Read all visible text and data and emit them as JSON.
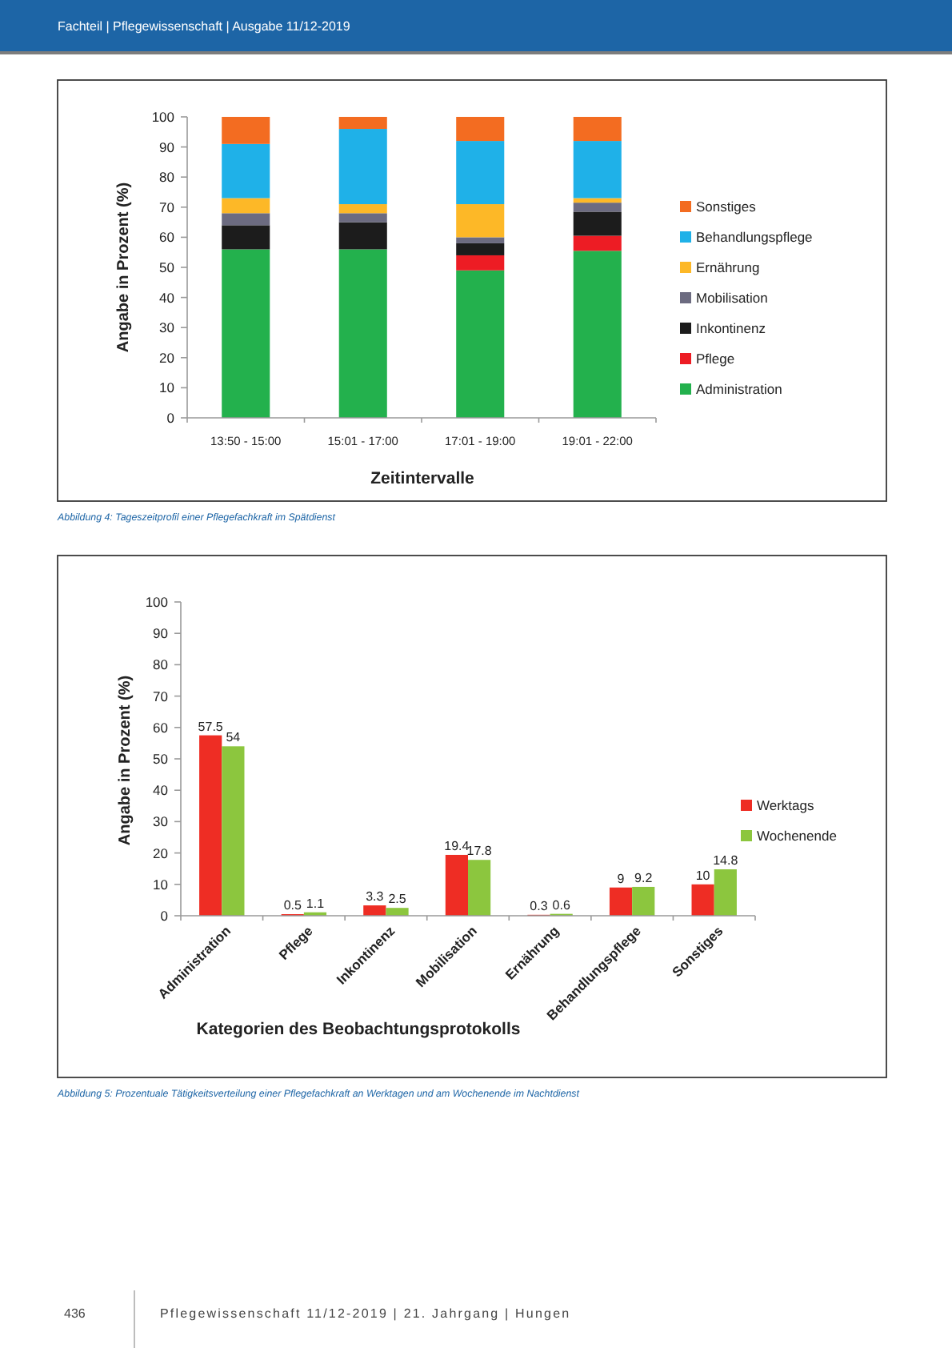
{
  "chart_data": [
    {
      "type": "bar",
      "stacked": true,
      "xlabel": "Zeitintervalle",
      "ylabel": "Angabe in Prozent (%)",
      "categories": [
        "13:50 - 15:00",
        "15:01 - 17:00",
        "17:01 - 19:00",
        "19:01 - 22:00"
      ],
      "series": [
        {
          "name": "Administration",
          "color": "#23b14d",
          "values": [
            56,
            56,
            49,
            55.5
          ]
        },
        {
          "name": "Pflege",
          "color": "#ed1c24",
          "values": [
            0,
            0,
            5,
            5
          ]
        },
        {
          "name": "Inkontinenz",
          "color": "#1c1c1c",
          "values": [
            8,
            9,
            4,
            8
          ]
        },
        {
          "name": "Mobilisation",
          "color": "#6c6b80",
          "values": [
            4,
            3,
            2,
            3
          ]
        },
        {
          "name": "Ernährung",
          "color": "#fdb827",
          "values": [
            5,
            3,
            11,
            1.5
          ]
        },
        {
          "name": "Behandlungspflege",
          "color": "#1fb1e8",
          "values": [
            18,
            25,
            21,
            19
          ]
        },
        {
          "name": "Sonstiges",
          "color": "#f36c21",
          "values": [
            9,
            4,
            8,
            8
          ]
        }
      ],
      "ylim": [
        0,
        100
      ],
      "yticks": [
        0,
        10,
        20,
        30,
        40,
        50,
        60,
        70,
        80,
        90,
        100
      ],
      "legend": "right",
      "annotations": [
        "Fachteil | Pflegewissenschaft | Ausgabe 11/12-2019",
        "Abbildung 4: Tageszeitprofil einer Pflegefachkraft im Spätdienst"
      ]
    },
    {
      "type": "bar",
      "xlabel": "Kategorien des Beobachtungsprotokolls",
      "ylabel": "Angabe in Prozent (%)",
      "categories": [
        "Administration",
        "Pflege",
        "Inkontinenz",
        "Mobilisation",
        "Ernährung",
        "Behandlungspflege",
        "Sonstiges"
      ],
      "series": [
        {
          "name": "Werktags",
          "color": "#ee2d24",
          "values": [
            57.5,
            0.5,
            3.3,
            19.4,
            0.3,
            9,
            10
          ]
        },
        {
          "name": "Wochenende",
          "color": "#8cc63e",
          "values": [
            54,
            1.1,
            2.5,
            17.8,
            0.6,
            9.2,
            14.8
          ]
        }
      ],
      "ylim": [
        0,
        100
      ],
      "yticks": [
        0,
        10,
        20,
        30,
        40,
        50,
        60,
        70,
        80,
        90,
        100
      ],
      "legend": "right",
      "data_labels": true,
      "annotations": [
        "Abbildung 5: Prozentuale Tätigkeitsverteilung einer Pflegefachkraft an Werktagen und am Wochenende im Nachtdienst",
        "436",
        "Pflegewissenschaft 11/12-2019 | 21. Jahrgang | Hungen"
      ]
    }
  ]
}
